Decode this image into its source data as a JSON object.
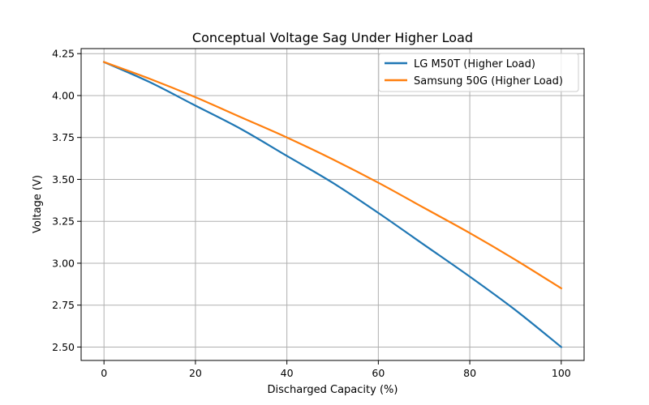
{
  "chart_data": {
    "type": "line",
    "title": "Conceptual Voltage Sag Under Higher Load",
    "xlabel": "Discharged Capacity (%)",
    "ylabel": "Voltage (V)",
    "xlim": [
      -5,
      105
    ],
    "ylim": [
      2.42,
      4.28
    ],
    "xticks": [
      0,
      20,
      40,
      60,
      80,
      100
    ],
    "yticks": [
      2.5,
      2.75,
      3.0,
      3.25,
      3.5,
      3.75,
      4.0,
      4.25
    ],
    "xtick_labels": [
      "0",
      "20",
      "40",
      "60",
      "80",
      "100"
    ],
    "ytick_labels": [
      "2.50",
      "2.75",
      "3.00",
      "3.25",
      "3.50",
      "3.75",
      "4.00",
      "4.25"
    ],
    "grid": true,
    "legend_position": "top-right",
    "x": [
      0,
      10,
      20,
      30,
      40,
      50,
      60,
      70,
      80,
      90,
      100
    ],
    "series": [
      {
        "name": "LG M50T (Higher Load)",
        "color": "#1f77b4",
        "values": [
          4.2,
          4.08,
          3.94,
          3.8,
          3.64,
          3.48,
          3.3,
          3.11,
          2.92,
          2.72,
          2.5
        ]
      },
      {
        "name": "Samsung 50G (Higher Load)",
        "color": "#ff7f0e",
        "values": [
          4.2,
          4.1,
          3.99,
          3.87,
          3.75,
          3.62,
          3.48,
          3.33,
          3.18,
          3.02,
          2.85
        ]
      }
    ]
  }
}
